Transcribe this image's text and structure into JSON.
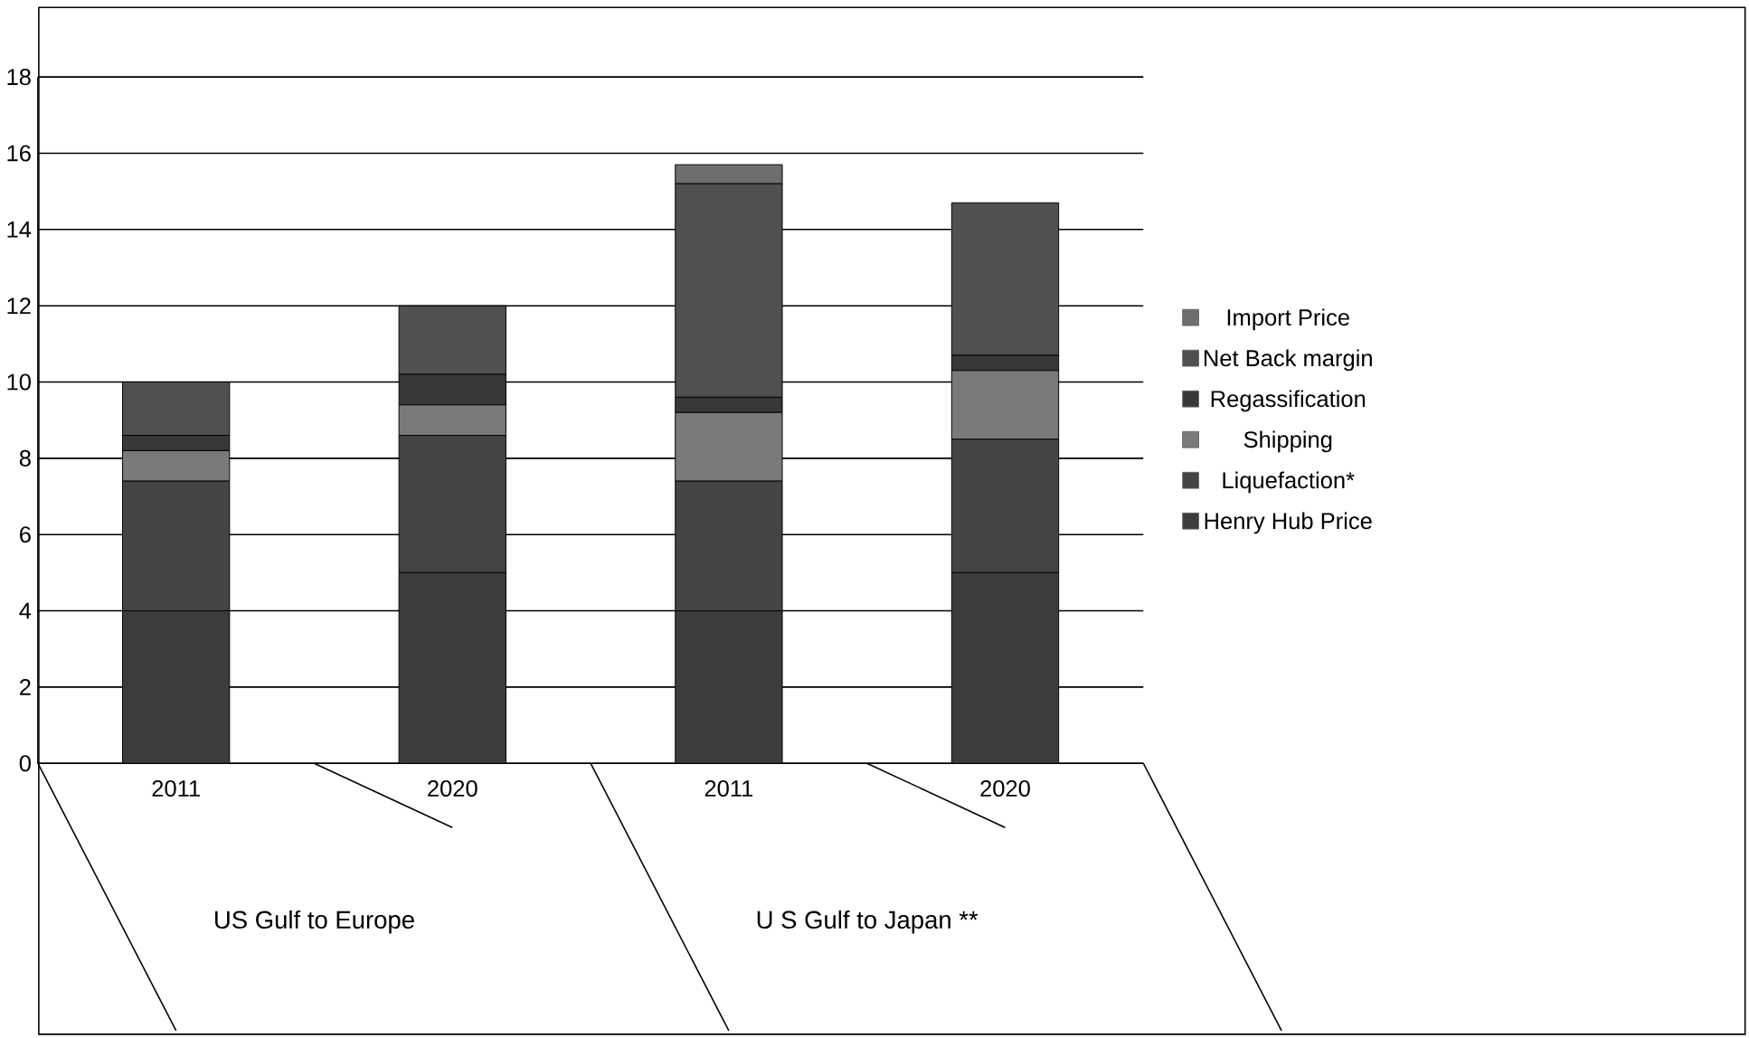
{
  "chart_data": {
    "type": "bar",
    "stacked": true,
    "categories": [
      "2011",
      "2020",
      "2011",
      "2020"
    ],
    "series": [
      {
        "name": "Henry Hub Price",
        "color": "#3c3c3c",
        "values": [
          4.0,
          5.0,
          4.0,
          5.0
        ]
      },
      {
        "name": "Liquefaction*",
        "color": "#444444",
        "values": [
          3.4,
          3.6,
          3.4,
          3.5
        ]
      },
      {
        "name": "Shipping",
        "color": "#7a7a7a",
        "values": [
          0.8,
          0.8,
          1.8,
          1.8
        ]
      },
      {
        "name": "Regassification",
        "color": "#383838",
        "values": [
          0.4,
          0.8,
          0.4,
          0.4
        ]
      },
      {
        "name": "Net Back margin",
        "color": "#505050",
        "values": [
          1.4,
          1.8,
          5.6,
          4.0
        ]
      },
      {
        "name": "Import Price",
        "color": "#6e6e6e",
        "values": [
          0,
          0,
          0.5,
          0
        ]
      }
    ],
    "ylim": [
      0,
      18
    ],
    "yticks": [
      0,
      2,
      4,
      6,
      8,
      10,
      12,
      14,
      16,
      18
    ],
    "grid": "y",
    "legend": "right",
    "annotations": [
      "US Gulf to Europe",
      "U S Gulf to Japan **"
    ]
  }
}
